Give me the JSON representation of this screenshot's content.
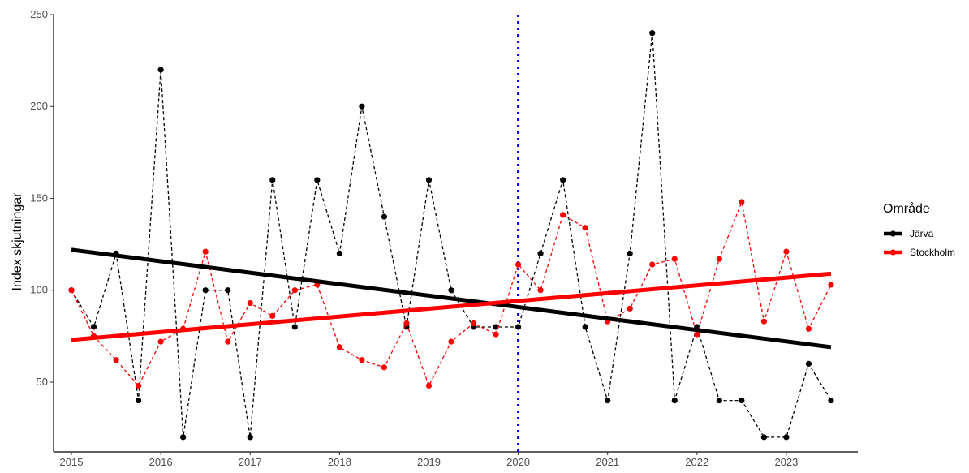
{
  "chart_data": {
    "type": "line",
    "title": "",
    "xlabel": "",
    "ylabel": "Index skjutningar",
    "xlim": [
      2014.8,
      2023.8
    ],
    "ylim": [
      12,
      250
    ],
    "x_ticks": [
      2015,
      2016,
      2017,
      2018,
      2019,
      2020,
      2021,
      2022,
      2023
    ],
    "y_ticks": [
      50,
      100,
      150,
      200,
      250
    ],
    "grid": false,
    "vline": {
      "x": 2020,
      "color": "#0000FF",
      "style": "dotted"
    },
    "legend": {
      "title": "Område",
      "placement": "right"
    },
    "x": [
      2015,
      2015.25,
      2015.5,
      2015.75,
      2016,
      2016.25,
      2016.5,
      2016.75,
      2017,
      2017.25,
      2017.5,
      2017.75,
      2018,
      2018.25,
      2018.5,
      2018.75,
      2019,
      2019.25,
      2019.5,
      2019.75,
      2020,
      2020.25,
      2020.5,
      2020.75,
      2021,
      2021.25,
      2021.5,
      2021.75,
      2022,
      2022.25,
      2022.5,
      2022.75,
      2023,
      2023.25,
      2023.5
    ],
    "series": [
      {
        "name": "Järva",
        "color": "#000000",
        "values": [
          100,
          80,
          120,
          40,
          220,
          20,
          100,
          100,
          20,
          160,
          80,
          160,
          120,
          200,
          140,
          80,
          160,
          100,
          80,
          80,
          80,
          120,
          160,
          80,
          40,
          120,
          240,
          40,
          80,
          40,
          40,
          20,
          20,
          60,
          40
        ],
        "trend": [
          122,
          69
        ]
      },
      {
        "name": "Stockholm",
        "color": "#FF0000",
        "values": [
          100,
          75,
          62,
          48,
          72,
          79,
          121,
          72,
          93,
          86,
          100,
          103,
          69,
          62,
          58,
          82,
          48,
          72,
          82,
          76,
          114,
          100,
          141,
          134,
          83,
          90,
          114,
          117,
          76,
          117,
          148,
          83,
          121,
          79,
          103
        ],
        "trend": [
          73,
          109
        ]
      }
    ]
  }
}
